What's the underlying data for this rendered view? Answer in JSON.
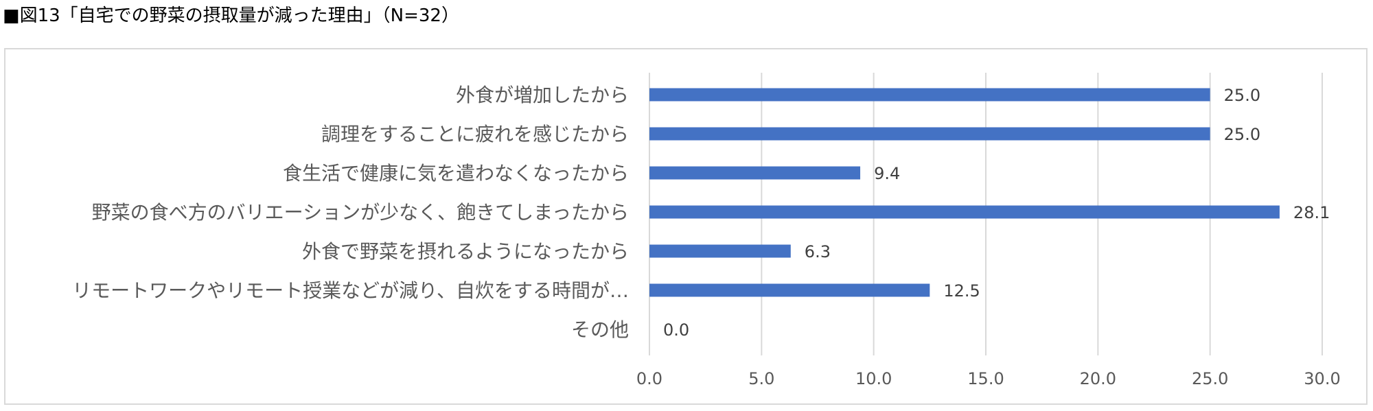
{
  "figure": {
    "title": "■図13「自宅での野菜の摂取量が減った理由」（N=32）"
  },
  "chart_data": {
    "type": "bar",
    "orientation": "horizontal",
    "title": "■図13「自宅での野菜の摂取量が減った理由」（N=32）",
    "categories": [
      "外食が増加したから",
      "調理をすることに疲れを感じたから",
      "食生活で健康に気を遣わなくなったから",
      "野菜の食べ方のバリエーションが少なく、飽きてしまったから",
      "外食で野菜を摂れるようになったから",
      "リモートワークやリモート授業などが減り、自炊をする時間が…",
      "その他"
    ],
    "values": [
      25.0,
      25.0,
      9.4,
      28.1,
      6.3,
      12.5,
      0.0
    ],
    "data_labels": [
      "25.0",
      "25.0",
      "9.4",
      "28.1",
      "6.3",
      "12.5",
      "0.0"
    ],
    "xlim": [
      0,
      30
    ],
    "xticks": [
      0,
      5,
      10,
      15,
      20,
      25,
      30
    ],
    "xtick_labels": [
      "0.0",
      "5.0",
      "10.0",
      "15.0",
      "20.0",
      "25.0",
      "30.0"
    ],
    "xlabel": "",
    "ylabel": "",
    "grid": "vertical",
    "legend": "none",
    "bar_color": "#4472c4",
    "grid_color": "#d9d9d9"
  }
}
